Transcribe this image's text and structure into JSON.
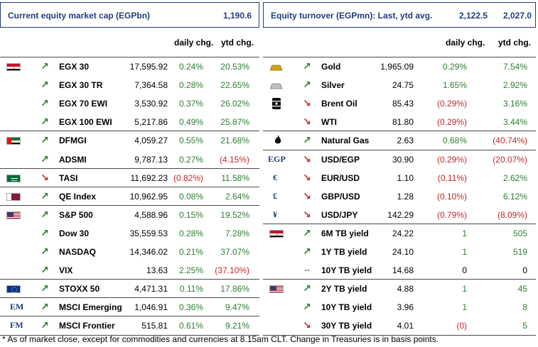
{
  "left": {
    "header": {
      "title": "Current equity market cap (EGPbn)",
      "value": "1,190.6"
    },
    "columns": {
      "daily": "daily chg.",
      "ytd": "ytd chg."
    },
    "rows": [
      {
        "icon": "egypt-flag-icon",
        "trend": "up",
        "name": "EGX 30",
        "value": "17,595.92",
        "daily": "0.24%",
        "daily_dir": "pos",
        "ytd": "20.53%",
        "ytd_dir": "pos"
      },
      {
        "icon": "",
        "trend": "up",
        "name": "EGX 30 TR",
        "value": "7,364.58",
        "daily": "0.28%",
        "daily_dir": "pos",
        "ytd": "22.65%",
        "ytd_dir": "pos"
      },
      {
        "icon": "",
        "trend": "up",
        "name": "EGX 70 EWI",
        "value": "3,530.92",
        "daily": "0.37%",
        "daily_dir": "pos",
        "ytd": "26.02%",
        "ytd_dir": "pos"
      },
      {
        "icon": "",
        "trend": "up",
        "name": "EGX 100 EWI",
        "value": "5,217.86",
        "daily": "0.49%",
        "daily_dir": "pos",
        "ytd": "25.87%",
        "ytd_dir": "pos"
      },
      {
        "icon": "uae-flag-icon",
        "trend": "up",
        "name": "DFMGI",
        "value": "4,059.27",
        "daily": "0.55%",
        "daily_dir": "pos",
        "ytd": "21.68%",
        "ytd_dir": "pos"
      },
      {
        "icon": "",
        "trend": "up",
        "name": "ADSMI",
        "value": "9,787.13",
        "daily": "0.27%",
        "daily_dir": "pos",
        "ytd": "(4.15%)",
        "ytd_dir": "neg"
      },
      {
        "icon": "saudi-flag-icon",
        "trend": "down",
        "name": "TASI",
        "value": "11,692.23",
        "daily": "(0.82%)",
        "daily_dir": "neg",
        "ytd": "11.58%",
        "ytd_dir": "pos"
      },
      {
        "icon": "qatar-flag-icon",
        "trend": "up",
        "name": "QE Index",
        "value": "10,962.95",
        "daily": "0.08%",
        "daily_dir": "pos",
        "ytd": "2.64%",
        "ytd_dir": "pos"
      },
      {
        "icon": "usa-flag-icon",
        "trend": "up",
        "name": "S&P 500",
        "value": "4,588.96",
        "daily": "0.15%",
        "daily_dir": "pos",
        "ytd": "19.52%",
        "ytd_dir": "pos"
      },
      {
        "icon": "",
        "trend": "up",
        "name": "Dow 30",
        "value": "35,559.53",
        "daily": "0.28%",
        "daily_dir": "pos",
        "ytd": "7.28%",
        "ytd_dir": "pos"
      },
      {
        "icon": "",
        "trend": "up",
        "name": "NASDAQ",
        "value": "14,346.02",
        "daily": "0.21%",
        "daily_dir": "pos",
        "ytd": "37.07%",
        "ytd_dir": "pos"
      },
      {
        "icon": "",
        "trend": "up",
        "name": "VIX",
        "value": "13.63",
        "daily": "2.25%",
        "daily_dir": "pos",
        "ytd": "(37.10%)",
        "ytd_dir": "neg"
      },
      {
        "icon": "eu-flag-icon",
        "trend": "up",
        "name": "STOXX 50",
        "value": "4,471.31",
        "daily": "0.11%",
        "daily_dir": "pos",
        "ytd": "17.86%",
        "ytd_dir": "pos"
      },
      {
        "icon": "text:EM",
        "trend": "up",
        "name": "MSCI Emerging",
        "value": "1,046.91",
        "daily": "0.36%",
        "daily_dir": "pos",
        "ytd": "9.47%",
        "ytd_dir": "pos"
      },
      {
        "icon": "text:FM",
        "trend": "up",
        "name": "MSCI Frontier",
        "value": "515.81",
        "daily": "0.61%",
        "daily_dir": "pos",
        "ytd": "9.21%",
        "ytd_dir": "pos"
      }
    ]
  },
  "right": {
    "header": {
      "title": "Equity turnover (EGPmn): Last, ytd avg.",
      "value1": "2,122.5",
      "value2": "2,027.0"
    },
    "columns": {
      "daily": "daily chg.",
      "ytd": "ytd chg."
    },
    "rows": [
      {
        "icon": "gold-bar-icon",
        "trend": "up",
        "name": "Gold",
        "value": "1,965.09",
        "daily": "0.29%",
        "daily_dir": "pos",
        "ytd": "7.54%",
        "ytd_dir": "pos"
      },
      {
        "icon": "silver-bar-icon",
        "trend": "up",
        "name": "Silver",
        "value": "24.75",
        "daily": "1.65%",
        "daily_dir": "pos",
        "ytd": "2.92%",
        "ytd_dir": "pos"
      },
      {
        "icon": "oil-barrel-icon",
        "trend": "down",
        "name": "Brent Oil",
        "value": "85.43",
        "daily": "(0.29%)",
        "daily_dir": "neg",
        "ytd": "3.16%",
        "ytd_dir": "pos"
      },
      {
        "icon": "",
        "trend": "down",
        "name": "WTI",
        "value": "81.80",
        "daily": "(0.29%)",
        "daily_dir": "neg",
        "ytd": "3.44%",
        "ytd_dir": "pos"
      },
      {
        "icon": "flame-icon",
        "trend": "up",
        "name": "Natural Gas",
        "value": "2.63",
        "daily": "0.68%",
        "daily_dir": "pos",
        "ytd": "(40.74%)",
        "ytd_dir": "neg"
      },
      {
        "icon": "text:EGP",
        "trend": "down",
        "name": "USD/EGP",
        "value": "30.90",
        "daily": "(0.29%)",
        "daily_dir": "neg",
        "ytd": "(20.07%)",
        "ytd_dir": "neg"
      },
      {
        "icon": "text:€",
        "trend": "down",
        "name": "EUR/USD",
        "value": "1.10",
        "daily": "(0.11%)",
        "daily_dir": "neg",
        "ytd": "2.62%",
        "ytd_dir": "pos"
      },
      {
        "icon": "text:£",
        "trend": "down",
        "name": "GBP/USD",
        "value": "1.28",
        "daily": "(0.10%)",
        "daily_dir": "neg",
        "ytd": "6.12%",
        "ytd_dir": "pos"
      },
      {
        "icon": "text:¥",
        "trend": "down",
        "name": "USD/JPY",
        "value": "142.29",
        "daily": "(0.79%)",
        "daily_dir": "neg",
        "ytd": "(8.09%)",
        "ytd_dir": "neg"
      },
      {
        "icon": "egypt-flag-icon",
        "trend": "up",
        "name": "6M TB yield",
        "value": "24.22",
        "daily": "1",
        "daily_dir": "pos",
        "ytd": "505",
        "ytd_dir": "pos"
      },
      {
        "icon": "",
        "trend": "up",
        "name": "1Y TB yield",
        "value": "24.10",
        "daily": "1",
        "daily_dir": "pos",
        "ytd": "519",
        "ytd_dir": "pos"
      },
      {
        "icon": "",
        "trend": "flat",
        "name": "10Y TB yield",
        "value": "14.68",
        "daily": "0",
        "daily_dir": "neu",
        "ytd": "0",
        "ytd_dir": "neu"
      },
      {
        "icon": "usa-flag-icon",
        "trend": "up",
        "name": "2Y TB yield",
        "value": "4.88",
        "daily": "1",
        "daily_dir": "pos",
        "ytd": "45",
        "ytd_dir": "pos"
      },
      {
        "icon": "",
        "trend": "up",
        "name": "10Y TB yield",
        "value": "3.96",
        "daily": "1",
        "daily_dir": "pos",
        "ytd": "8",
        "ytd_dir": "pos"
      },
      {
        "icon": "",
        "trend": "down",
        "name": "30Y TB yield",
        "value": "4.01",
        "daily": "(0)",
        "daily_dir": "neg",
        "ytd": "5",
        "ytd_dir": "pos"
      }
    ]
  },
  "footnote": "* As of market close, except for commodities and currencies at 8.15am CLT. Change in Treasuries is in basis points.",
  "colors": {
    "positive": "#2e7d32",
    "negative": "#c62828",
    "header": "#1f3d7a"
  }
}
